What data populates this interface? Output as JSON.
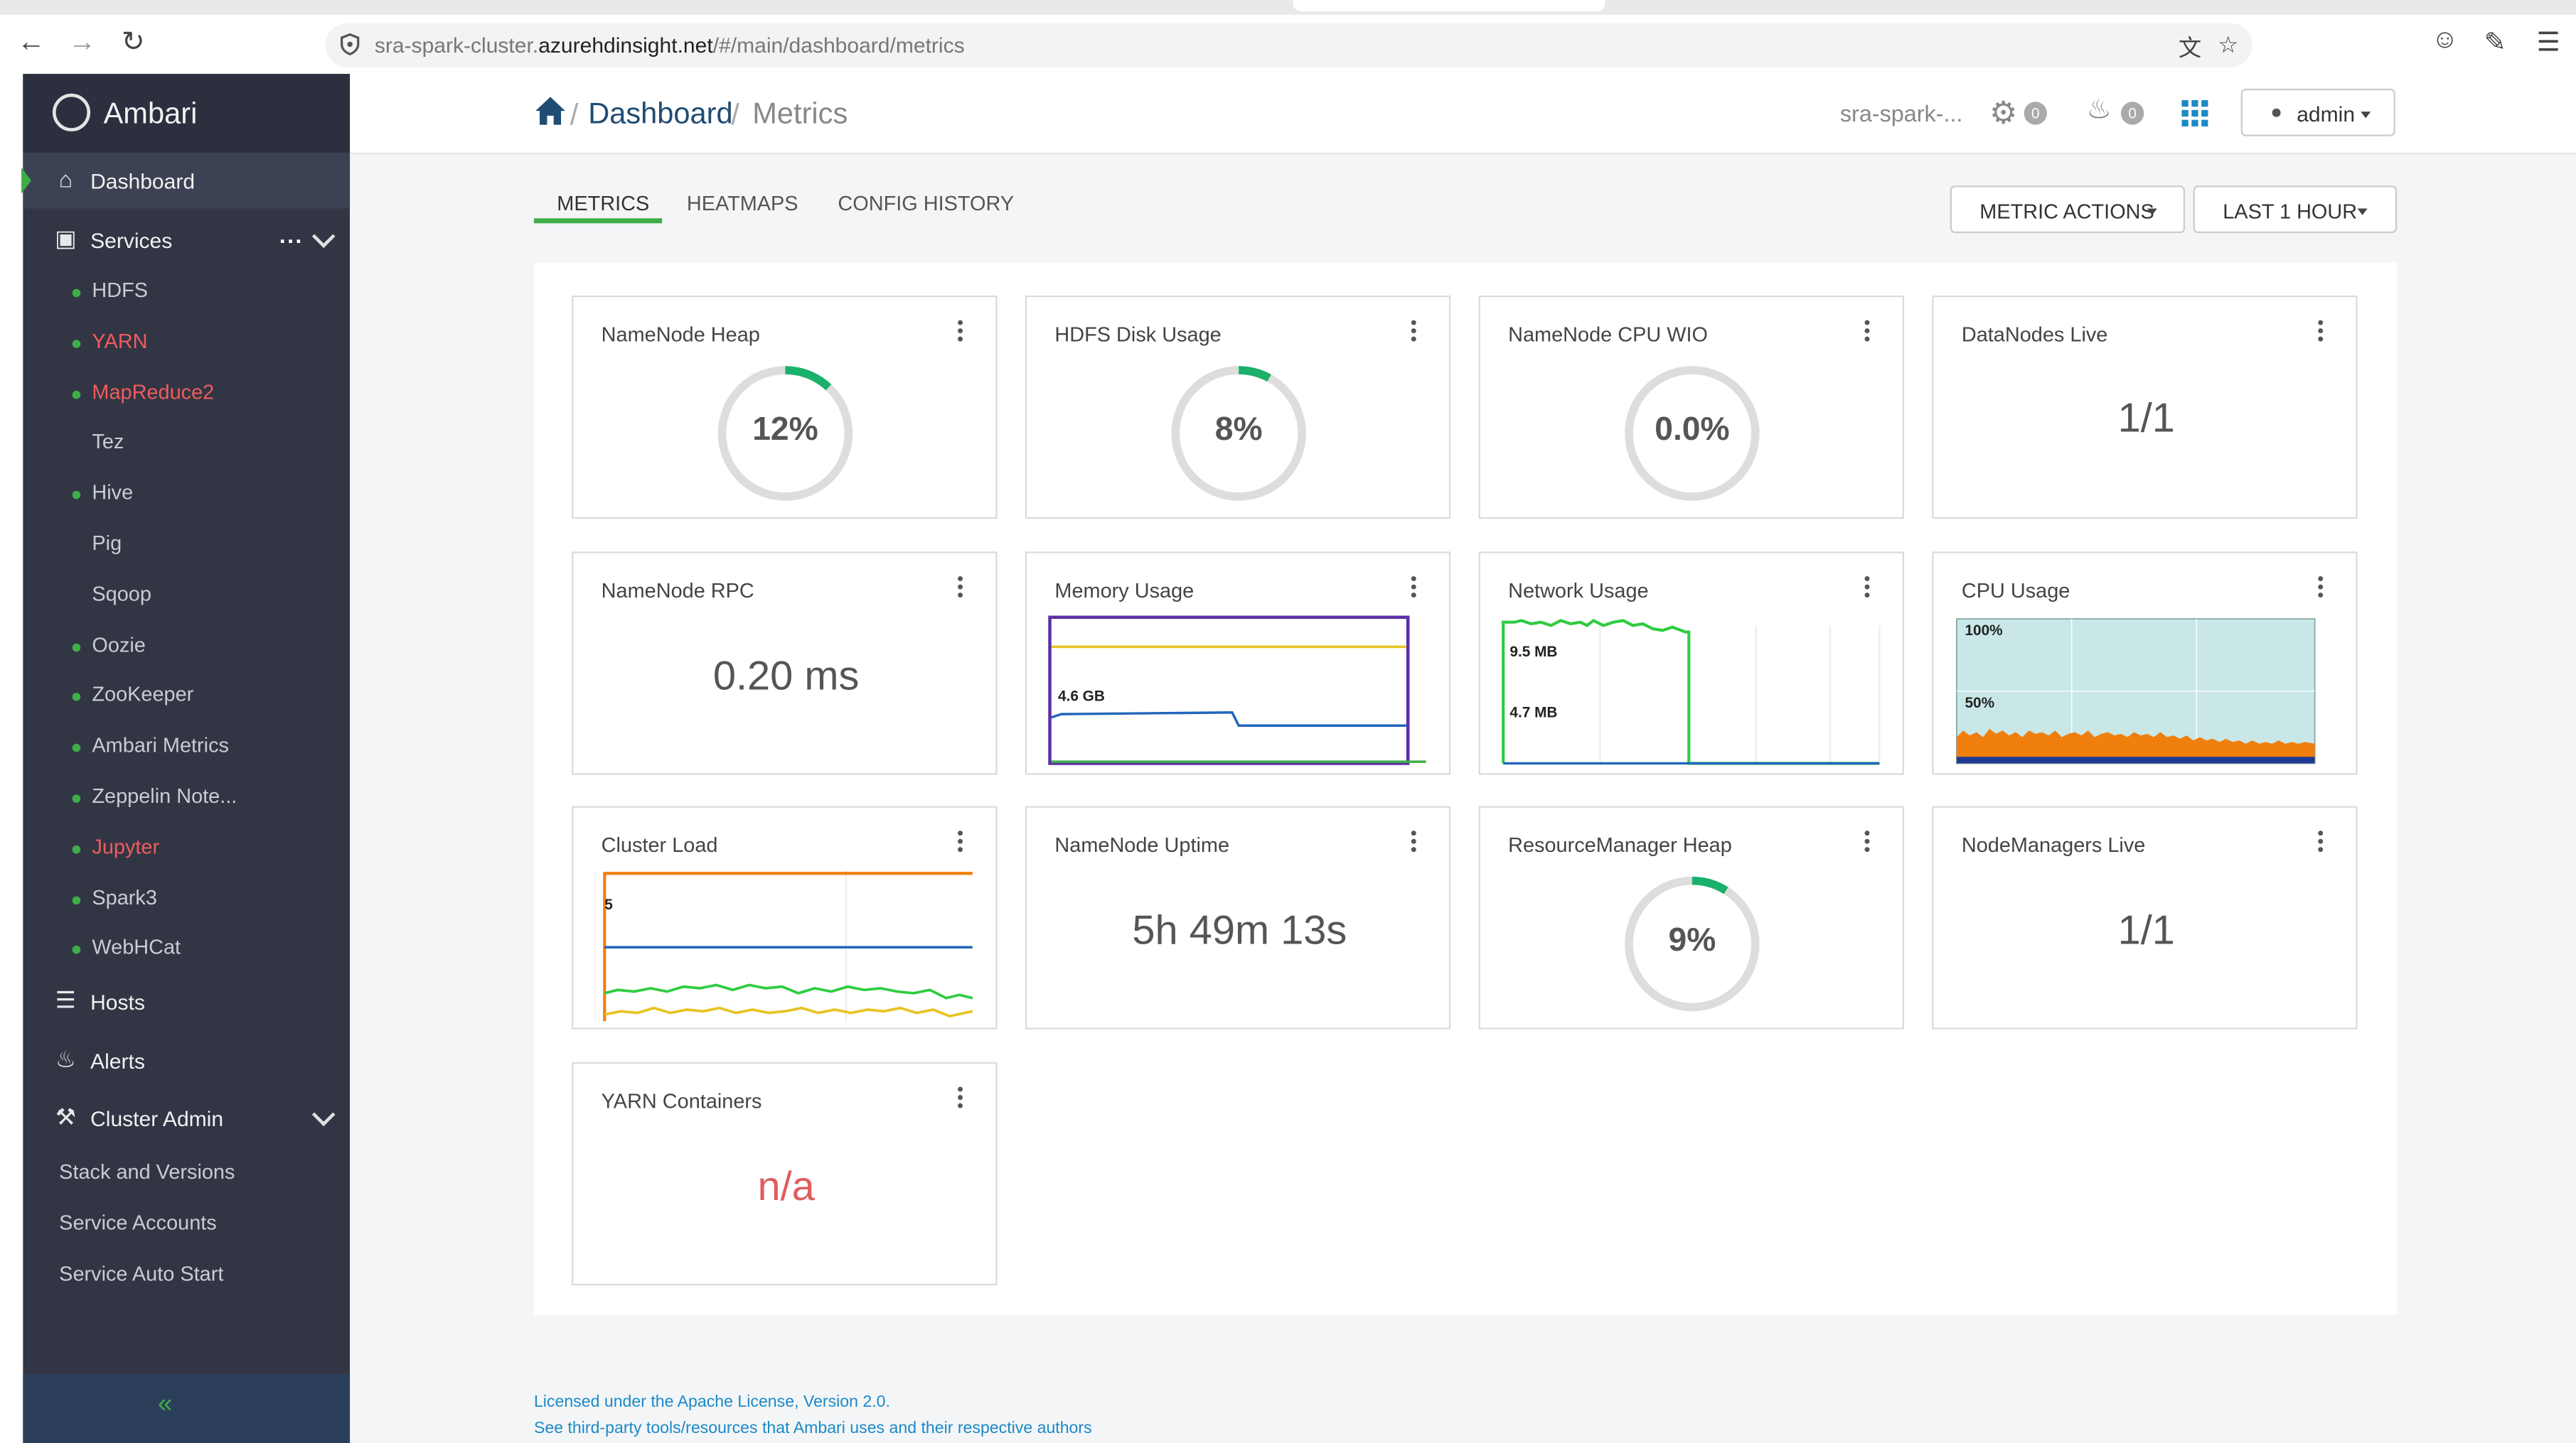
{
  "browser": {
    "url_prefix": "sra-spark-cluster.",
    "url_host": "azurehdinsight.net",
    "url_path": "/#/main/dashboard/metrics",
    "icons": [
      "back-icon",
      "forward-icon",
      "reload-icon",
      "site-info-icon",
      "translate-icon",
      "bookmark-star-icon",
      "account-icon",
      "extensions-icon",
      "menu-icon"
    ]
  },
  "sidebar": {
    "brand": "Ambari",
    "dashboard_label": "Dashboard",
    "services_label": "Services",
    "services_more": "...",
    "services": [
      {
        "label": "HDFS",
        "status": "green",
        "color": "#c8ccd5"
      },
      {
        "label": "YARN",
        "status": "green",
        "color": "#ef5d5d"
      },
      {
        "label": "MapReduce2",
        "status": "green",
        "color": "#ef5d5d"
      },
      {
        "label": "Tez",
        "status": "none",
        "color": "#c8ccd5"
      },
      {
        "label": "Hive",
        "status": "green",
        "color": "#c8ccd5"
      },
      {
        "label": "Pig",
        "status": "none",
        "color": "#c8ccd5"
      },
      {
        "label": "Sqoop",
        "status": "none",
        "color": "#c8ccd5"
      },
      {
        "label": "Oozie",
        "status": "green",
        "color": "#c8ccd5"
      },
      {
        "label": "ZooKeeper",
        "status": "green",
        "color": "#c8ccd5"
      },
      {
        "label": "Ambari Metrics",
        "status": "green",
        "color": "#c8ccd5"
      },
      {
        "label": "Zeppelin Note...",
        "status": "green",
        "color": "#c8ccd5"
      },
      {
        "label": "Jupyter",
        "status": "green",
        "color": "#ef5d5d"
      },
      {
        "label": "Spark3",
        "status": "green",
        "color": "#c8ccd5"
      },
      {
        "label": "WebHCat",
        "status": "green",
        "color": "#c8ccd5"
      }
    ],
    "hosts_label": "Hosts",
    "alerts_label": "Alerts",
    "cluster_admin_label": "Cluster Admin",
    "cluster_admin_items": [
      "Stack and Versions",
      "Service Accounts",
      "Service Auto Start"
    ],
    "collapse_glyph": "«"
  },
  "header": {
    "breadcrumb_root": "Dashboard",
    "breadcrumb_sep": "/",
    "breadcrumb_current": "Metrics",
    "cluster_name": "sra-spark-...",
    "ops_count": "0",
    "alerts_count": "0",
    "user": "admin"
  },
  "tabs": [
    "METRICS",
    "HEATMAPS",
    "CONFIG HISTORY"
  ],
  "actions": {
    "metric_actions": "METRIC ACTIONS",
    "time_range": "LAST 1 HOUR"
  },
  "colors": {
    "accent_green": "#3fae49",
    "link_blue": "#1b8ac6",
    "sidebar_bg": "#323544",
    "alert_red": "#ef5d5d"
  },
  "widgets": {
    "namenode_heap": {
      "title": "NameNode Heap",
      "value": "12%",
      "fraction": 0.12
    },
    "hdfs_disk": {
      "title": "HDFS Disk Usage",
      "value": "8%",
      "fraction": 0.08
    },
    "cpu_wio": {
      "title": "NameNode CPU WIO",
      "value": "0.0%",
      "fraction": 0.0
    },
    "datanodes_live": {
      "title": "DataNodes Live",
      "value": "1/1"
    },
    "namenode_rpc": {
      "title": "NameNode RPC",
      "value": "0.20 ms"
    },
    "memory_usage": {
      "title": "Memory Usage",
      "label": "4.6 GB"
    },
    "network_usage": {
      "title": "Network Usage",
      "label_high": "9.5 MB",
      "label_low": "4.7 MB"
    },
    "cpu_usage": {
      "title": "CPU Usage",
      "label_high": "100%",
      "label_mid": "50%"
    },
    "cluster_load": {
      "title": "Cluster Load",
      "label": "5"
    },
    "namenode_uptime": {
      "title": "NameNode Uptime",
      "value": "5h 49m 13s"
    },
    "rm_heap": {
      "title": "ResourceManager Heap",
      "value": "9%",
      "fraction": 0.09
    },
    "nodemanagers_live": {
      "title": "NodeManagers Live",
      "value": "1/1"
    },
    "yarn_containers": {
      "title": "YARN Containers",
      "value": "n/a"
    }
  },
  "footer": {
    "license": "Licensed under the Apache License, Version 2.0.",
    "third_party": "See third-party tools/resources that Ambari uses and their respective authors"
  }
}
